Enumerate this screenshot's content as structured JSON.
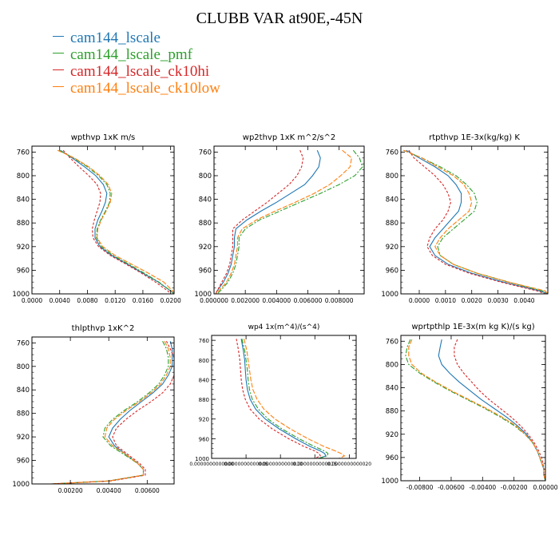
{
  "title": "CLUBB VAR at90E,-45N",
  "legend": [
    {
      "label": "cam144_lscale",
      "color": "#1f77b4"
    },
    {
      "label": "cam144_lscale_pmf",
      "color": "#2ca02c"
    },
    {
      "label": "cam144_lscale_ck10hi",
      "color": "#d62728"
    },
    {
      "label": "cam144_lscale_ck10low",
      "color": "#ff7f0e"
    }
  ],
  "chart_data": [
    {
      "type": "line",
      "title": "wpthvp  1xK m/s",
      "xlabel": "",
      "ylabel": "",
      "xlim": [
        0,
        0.0205
      ],
      "ylim": [
        1000,
        750
      ],
      "xticks": [
        "0.0000",
        "0.0040",
        "0.0080",
        "0.0120",
        "0.0160",
        "0.0200"
      ],
      "xtick_values": [
        0,
        0.004,
        0.008,
        0.012,
        0.016,
        0.02
      ],
      "yticks": [
        760,
        800,
        840,
        880,
        920,
        960,
        1000
      ],
      "y": [
        757,
        770,
        785,
        800,
        815,
        830,
        845,
        860,
        875,
        890,
        905,
        920,
        935,
        950,
        965,
        980,
        995,
        1000
      ],
      "series": [
        {
          "values": [
            0.0041,
            0.0058,
            0.0076,
            0.0092,
            0.0103,
            0.0108,
            0.0106,
            0.0101,
            0.0095,
            0.0091,
            0.0091,
            0.0098,
            0.0115,
            0.0138,
            0.016,
            0.0182,
            0.02,
            0.0205
          ]
        },
        {
          "values": [
            0.0039,
            0.006,
            0.008,
            0.0096,
            0.0108,
            0.0113,
            0.0112,
            0.0106,
            0.0099,
            0.0094,
            0.0093,
            0.01,
            0.0117,
            0.014,
            0.0162,
            0.0183,
            0.02,
            0.0205
          ]
        },
        {
          "values": [
            0.0045,
            0.0055,
            0.0068,
            0.0082,
            0.0094,
            0.0099,
            0.0098,
            0.0094,
            0.009,
            0.0087,
            0.0088,
            0.0096,
            0.0113,
            0.0136,
            0.0158,
            0.0178,
            0.0196,
            0.02
          ]
        },
        {
          "values": [
            0.0037,
            0.0061,
            0.0082,
            0.0098,
            0.011,
            0.0115,
            0.0113,
            0.0107,
            0.01,
            0.0095,
            0.0094,
            0.0102,
            0.012,
            0.0144,
            0.0168,
            0.019,
            0.0203,
            0.0205
          ]
        }
      ]
    },
    {
      "type": "line",
      "title": "wp2thvp  1xK m^2/s^2",
      "xlabel": "",
      "ylabel": "",
      "xlim": [
        0,
        0.0096
      ],
      "ylim": [
        1000,
        750
      ],
      "xticks": [
        "0.000000",
        "0.002000",
        "0.004000",
        "0.006000",
        "0.008000"
      ],
      "xtick_values": [
        0,
        0.002,
        0.004,
        0.006,
        0.008
      ],
      "yticks": [
        760,
        800,
        840,
        880,
        920,
        960,
        1000
      ],
      "y": [
        757,
        770,
        785,
        800,
        815,
        830,
        845,
        860,
        875,
        890,
        905,
        920,
        935,
        950,
        965,
        980,
        995,
        1000
      ],
      "series": [
        {
          "values": [
            0.0066,
            0.0068,
            0.0067,
            0.0063,
            0.0058,
            0.0049,
            0.004,
            0.003,
            0.0021,
            0.0014,
            0.0013,
            0.0013,
            0.0012,
            0.0011,
            0.0009,
            0.0006,
            0.0002,
            0.0001
          ]
        },
        {
          "values": [
            0.0089,
            0.0093,
            0.0095,
            0.009,
            0.008,
            0.0068,
            0.0055,
            0.0042,
            0.0029,
            0.002,
            0.0016,
            0.0016,
            0.0015,
            0.0014,
            0.0012,
            0.0009,
            0.0004,
            0.0002
          ]
        },
        {
          "values": [
            0.0055,
            0.0057,
            0.0056,
            0.0053,
            0.0048,
            0.0041,
            0.0034,
            0.0026,
            0.0018,
            0.0012,
            0.0012,
            0.0012,
            0.0011,
            0.001,
            0.0008,
            0.0005,
            0.0002,
            0.0001
          ]
        },
        {
          "values": [
            0.0082,
            0.0088,
            0.0087,
            0.0081,
            0.0074,
            0.0064,
            0.0052,
            0.0039,
            0.0027,
            0.0018,
            0.0015,
            0.0015,
            0.0014,
            0.0013,
            0.0011,
            0.0008,
            0.0003,
            0.0001
          ]
        }
      ]
    },
    {
      "type": "line",
      "title": "rtpthvp  1E-3x(kg/kg) K",
      "xlabel": "",
      "ylabel": "",
      "xlim": [
        -0.0007,
        0.0049
      ],
      "ylim": [
        1000,
        750
      ],
      "xticks": [
        "0.0000",
        "0.0010",
        "0.0020",
        "0.0030",
        "0.0040"
      ],
      "xtick_values": [
        0,
        0.001,
        0.002,
        0.003,
        0.004
      ],
      "yticks": [
        760,
        800,
        840,
        880,
        920,
        960,
        1000
      ],
      "y": [
        757,
        770,
        785,
        800,
        815,
        830,
        845,
        860,
        875,
        890,
        905,
        920,
        935,
        950,
        965,
        980,
        995,
        1000
      ],
      "series": [
        {
          "values": [
            -0.0005,
            0.0,
            0.0006,
            0.0011,
            0.0014,
            0.0016,
            0.0016,
            0.0015,
            0.0012,
            0.0009,
            0.0006,
            0.0004,
            0.0006,
            0.0011,
            0.002,
            0.0032,
            0.0046,
            0.0049
          ]
        },
        {
          "values": [
            -0.0006,
            0.0001,
            0.0008,
            0.0014,
            0.0018,
            0.0021,
            0.0022,
            0.0021,
            0.0017,
            0.0013,
            0.0009,
            0.0007,
            0.0008,
            0.0013,
            0.0022,
            0.0034,
            0.0047,
            0.0049
          ]
        },
        {
          "values": [
            -0.0004,
            -0.0002,
            0.0002,
            0.0006,
            0.0009,
            0.0011,
            0.0012,
            0.0011,
            0.0009,
            0.0006,
            0.0004,
            0.0003,
            0.0005,
            0.001,
            0.0019,
            0.0031,
            0.0045,
            0.0048
          ]
        },
        {
          "values": [
            -0.0006,
            0.0001,
            0.0007,
            0.0013,
            0.0017,
            0.0019,
            0.002,
            0.0019,
            0.0015,
            0.0011,
            0.0008,
            0.0006,
            0.0008,
            0.0013,
            0.0022,
            0.0034,
            0.0048,
            0.0049
          ]
        }
      ]
    },
    {
      "type": "line",
      "title": "thlpthvp  1xK^2",
      "xlabel": "",
      "ylabel": "",
      "xlim": [
        0,
        0.0074
      ],
      "ylim": [
        1000,
        750
      ],
      "xticks": [
        "0.00200",
        "0.00400",
        "0.00600"
      ],
      "xtick_values": [
        0.002,
        0.004,
        0.006
      ],
      "yticks": [
        760,
        800,
        840,
        880,
        920,
        960,
        1000
      ],
      "y": [
        757,
        770,
        785,
        800,
        815,
        830,
        845,
        860,
        875,
        890,
        905,
        920,
        935,
        950,
        965,
        975,
        985,
        995,
        1000
      ],
      "series": [
        {
          "values": [
            0.0072,
            0.0073,
            0.0073,
            0.0073,
            0.0071,
            0.0068,
            0.0063,
            0.0057,
            0.0051,
            0.0046,
            0.0042,
            0.004,
            0.0043,
            0.0049,
            0.0055,
            0.0058,
            0.0058,
            0.004,
            0.001
          ]
        },
        {
          "values": [
            0.0068,
            0.007,
            0.0071,
            0.0071,
            0.0069,
            0.0066,
            0.0061,
            0.0055,
            0.0048,
            0.0042,
            0.0038,
            0.0037,
            0.0041,
            0.0048,
            0.0055,
            0.0058,
            0.0058,
            0.004,
            0.001
          ]
        },
        {
          "values": [
            0.007,
            0.0072,
            0.0074,
            0.0074,
            0.0074,
            0.0072,
            0.0068,
            0.0062,
            0.0055,
            0.0049,
            0.0044,
            0.0042,
            0.0044,
            0.005,
            0.0056,
            0.0059,
            0.0059,
            0.0041,
            0.001
          ]
        },
        {
          "values": [
            0.0069,
            0.0071,
            0.0072,
            0.0072,
            0.007,
            0.0067,
            0.0062,
            0.0056,
            0.0049,
            0.0043,
            0.0039,
            0.0038,
            0.0042,
            0.0049,
            0.0055,
            0.0058,
            0.0058,
            0.004,
            0.001
          ]
        }
      ]
    },
    {
      "type": "line",
      "title": "wp4  1x(m^4)/(s^4)",
      "xlabel": "",
      "ylabel": "",
      "xlim": [
        0,
        2.1e-12
      ],
      "ylim": [
        1000,
        750
      ],
      "xticks": [
        "0.0000000000000",
        "0.0000000000005",
        "0.0000000000010",
        "0.0000000000015",
        "0.0000000000020"
      ],
      "xtick_values": [
        0,
        5e-13,
        1e-12,
        1.5e-12,
        2e-12
      ],
      "yticks": [
        760,
        800,
        840,
        880,
        920,
        960,
        1000
      ],
      "y": [
        757,
        780,
        800,
        820,
        840,
        860,
        880,
        900,
        920,
        940,
        960,
        975,
        985,
        990,
        995,
        1000
      ],
      "series": [
        {
          "values": [
            4.3e-13,
            4.6e-13,
            4.8e-13,
            4.9e-13,
            5e-13,
            5.2e-13,
            5.6e-13,
            6.4e-13,
            7.8e-13,
            9.8e-13,
            1.22e-12,
            1.42e-12,
            1.58e-12,
            1.64e-12,
            1.66e-12,
            1.55e-12
          ]
        },
        {
          "values": [
            4.4e-13,
            4.8e-13,
            5e-13,
            5.2e-13,
            5.3e-13,
            5.5e-13,
            5.9e-13,
            6.8e-13,
            8.2e-13,
            1.02e-12,
            1.27e-12,
            1.48e-12,
            1.64e-12,
            1.69e-12,
            1.68e-12,
            1.56e-12
          ]
        },
        {
          "values": [
            3.6e-13,
            3.9e-13,
            4.1e-13,
            4.2e-13,
            4.3e-13,
            4.5e-13,
            4.9e-13,
            5.6e-13,
            6.9e-13,
            8.8e-13,
            1.12e-12,
            1.33e-12,
            1.5e-12,
            1.56e-12,
            1.58e-12,
            1.5e-12
          ]
        },
        {
          "values": [
            4.7e-13,
            5.1e-13,
            5.3e-13,
            5.5e-13,
            5.7e-13,
            6e-13,
            6.6e-13,
            7.6e-13,
            9.2e-13,
            1.14e-12,
            1.4e-12,
            1.62e-12,
            1.8e-12,
            1.88e-12,
            1.93e-12,
            1.85e-12
          ]
        }
      ]
    },
    {
      "type": "line",
      "title": "wprtpthlp  1E-3x(m kg K)/(s kg)",
      "xlabel": "",
      "ylabel": "",
      "xlim": [
        -0.0092,
        0.0
      ],
      "ylim": [
        1000,
        750
      ],
      "xticks": [
        "-0.00800",
        "-0.00600",
        "-0.00400",
        "-0.00200",
        "0.00000"
      ],
      "xtick_values": [
        -0.008,
        -0.006,
        -0.004,
        -0.002,
        0.0
      ],
      "yticks": [
        760,
        800,
        840,
        880,
        920,
        960,
        1000
      ],
      "y": [
        757,
        770,
        785,
        800,
        815,
        830,
        845,
        860,
        875,
        890,
        905,
        920,
        935,
        950,
        965,
        980,
        990,
        1000
      ],
      "series": [
        {
          "values": [
            -0.0066,
            -0.0067,
            -0.0068,
            -0.0066,
            -0.0061,
            -0.0055,
            -0.0048,
            -0.0041,
            -0.0033,
            -0.0025,
            -0.0018,
            -0.0012,
            -0.0008,
            -0.0005,
            -0.0003,
            -0.0001,
            -0.0001,
            0.0
          ]
        },
        {
          "values": [
            -0.0086,
            -0.0088,
            -0.0089,
            -0.0087,
            -0.008,
            -0.0071,
            -0.0061,
            -0.005,
            -0.0039,
            -0.0029,
            -0.002,
            -0.0013,
            -0.0008,
            -0.0005,
            -0.0003,
            -0.0001,
            -0.0001,
            0.0
          ]
        },
        {
          "values": [
            -0.0056,
            -0.0058,
            -0.0058,
            -0.0056,
            -0.0052,
            -0.0047,
            -0.0042,
            -0.0036,
            -0.0029,
            -0.0022,
            -0.0016,
            -0.0011,
            -0.0007,
            -0.0004,
            -0.0002,
            -0.0001,
            -0.0001,
            0.0
          ]
        },
        {
          "values": [
            -0.0085,
            -0.0087,
            -0.0087,
            -0.0085,
            -0.0079,
            -0.007,
            -0.006,
            -0.0049,
            -0.0038,
            -0.0028,
            -0.0019,
            -0.0013,
            -0.0008,
            -0.0005,
            -0.0003,
            -0.0001,
            -0.0001,
            0.0
          ]
        }
      ]
    }
  ]
}
